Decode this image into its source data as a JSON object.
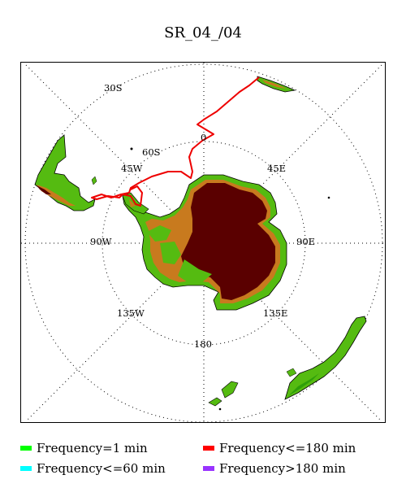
{
  "title": "SR_04_/04",
  "grid_labels": {
    "lat_30s": "30S",
    "lat_60s": "60S",
    "lon_0": "0",
    "lon_45e": "45E",
    "lon_45w": "45W",
    "lon_90e": "90E",
    "lon_90w": "90W",
    "lon_135e": "135E",
    "lon_135w": "135W",
    "lon_180": "180"
  },
  "legend": [
    {
      "label": "Frequency=1 min",
      "color": "#00ff00"
    },
    {
      "label": "Frequency<=180 min",
      "color": "#ff0000"
    },
    {
      "label": "Frequency<=60 min",
      "color": "#00ffff"
    },
    {
      "label": "Frequency>180 min",
      "color": "#9933ff"
    }
  ],
  "colors": {
    "track": "#ee0000",
    "ice_sheet": "#5a0000",
    "land_green": "#55bb11",
    "land_orange": "#c87a1e"
  }
}
